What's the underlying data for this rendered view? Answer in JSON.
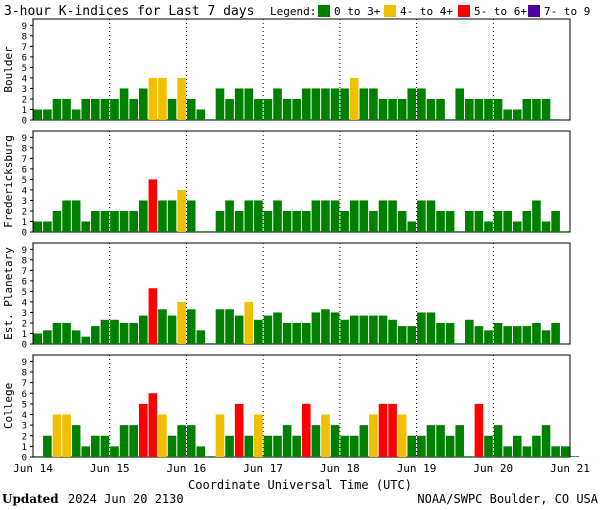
{
  "title": "3-hour K-indices for Last 7 days",
  "legend": {
    "label": "Legend:",
    "items": [
      {
        "label": "0 to 3+",
        "color": "#008000"
      },
      {
        "label": "4- to 4+",
        "color": "#f0c000"
      },
      {
        "label": "5- to 6+",
        "color": "#ff0000"
      },
      {
        "label": "7- to 9",
        "color": "#5000a0"
      }
    ]
  },
  "footer": {
    "updated_label": "Updated",
    "updated_value": "2024 Jun 20 2130",
    "credit": "NOAA/SWPC Boulder, CO USA"
  },
  "chart_data": {
    "type": "bar",
    "title": "3-hour K-indices for Last 7 days",
    "xlabel": "Coordinate Universal Time (UTC)",
    "x_ticks": [
      "Jun 14",
      "Jun 15",
      "Jun 16",
      "Jun 17",
      "Jun 18",
      "Jun 19",
      "Jun 20",
      "Jun 21"
    ],
    "y_ticks": [
      0,
      1,
      2,
      3,
      4,
      5,
      6,
      7,
      8,
      9
    ],
    "ylim": [
      0,
      9
    ],
    "intervals_per_day": 8,
    "color_rule": {
      "0-3.99": "#008000",
      "4-4.99": "#f0c000",
      "5-6.99": "#ff0000",
      "7-9": "#5000a0"
    },
    "grid": true,
    "panels": [
      {
        "name": "Boulder",
        "values": [
          1,
          1,
          2,
          2,
          1,
          2,
          2,
          2,
          2,
          3,
          2,
          3,
          4,
          4,
          2,
          4,
          2,
          1,
          0,
          3,
          2,
          3,
          3,
          2,
          2,
          3,
          2,
          2,
          3,
          3,
          3,
          3,
          3,
          4,
          3,
          3,
          2,
          2,
          2,
          3,
          3,
          2,
          2,
          0,
          3,
          2,
          2,
          2,
          2,
          1,
          1,
          2,
          2,
          2,
          0
        ]
      },
      {
        "name": "Fredericksburg",
        "values": [
          1,
          1,
          2,
          3,
          3,
          1,
          2,
          2,
          2,
          2,
          2,
          3,
          5,
          3,
          3,
          4,
          3,
          0,
          0,
          2,
          3,
          2,
          3,
          3,
          2,
          3,
          2,
          2,
          2,
          3,
          3,
          3,
          2,
          3,
          3,
          2,
          3,
          3,
          2,
          1,
          3,
          3,
          2,
          2,
          0,
          2,
          2,
          1,
          2,
          2,
          1,
          2,
          3,
          1,
          2,
          0
        ]
      },
      {
        "name": "Est. Planetary",
        "values": [
          1,
          1.3,
          2,
          2,
          1.3,
          0.7,
          1.7,
          2.3,
          2.3,
          2,
          2,
          2.7,
          5.3,
          3.3,
          2.7,
          4,
          3.3,
          1.3,
          0,
          3.3,
          3.3,
          2.7,
          4,
          2.3,
          2.7,
          3,
          2,
          2,
          2,
          3,
          3.3,
          3,
          2.3,
          2.7,
          2.7,
          2.7,
          2.7,
          2.3,
          1.7,
          1.7,
          3,
          3,
          2,
          2,
          0,
          2.3,
          1.7,
          1.3,
          2,
          1.7,
          1.7,
          1.7,
          2,
          1.3,
          2
        ]
      },
      {
        "name": "College",
        "values": [
          0,
          2,
          4,
          4,
          3,
          1,
          2,
          2,
          1,
          3,
          3,
          5,
          6,
          4,
          2,
          3,
          3,
          1,
          0,
          4,
          2,
          5,
          2,
          4,
          2,
          2,
          3,
          2,
          5,
          3,
          4,
          3,
          2,
          2,
          3,
          4,
          5,
          5,
          4,
          2,
          2,
          3,
          3,
          2,
          3,
          0,
          5,
          2,
          3,
          1,
          2,
          1,
          2,
          3,
          1,
          1,
          0
        ]
      }
    ]
  }
}
